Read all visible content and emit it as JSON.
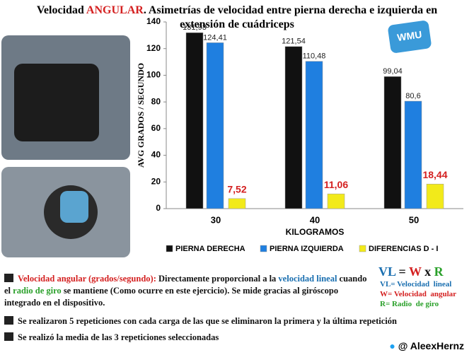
{
  "header": {
    "title_start": "Velocidad ",
    "title_highlight": "ANGULAR",
    "title_rest": ". Asimetrías de velocidad entre pierna derecha e izquierda en",
    "title_line2": "extensión de cuádriceps",
    "logo": "WMU"
  },
  "chart_data": {
    "type": "bar",
    "categories": [
      "30",
      "40",
      "50"
    ],
    "x_label": "KILOGRAMOS",
    "y_label": "AVG GRADOS / SEGUNDO",
    "ylim": [
      0,
      140
    ],
    "yticks": [
      0,
      20,
      40,
      60,
      80,
      100,
      120,
      140
    ],
    "series": [
      {
        "name": "PIERNA DERECHA",
        "color": "#111111",
        "values": [
          131.93,
          121.54,
          99.04
        ],
        "value_labels": [
          "131,93",
          "121,54",
          "99,04"
        ]
      },
      {
        "name": "PIERNA IZQUIERDA",
        "color": "#1f7fe0",
        "values": [
          124.41,
          110.48,
          80.6
        ],
        "value_labels": [
          "124,41",
          "110,48",
          "80,6"
        ]
      },
      {
        "name": "DIFERENCIAS D - I",
        "color": "#f2ea1a",
        "values": [
          7.52,
          11.06,
          18.44
        ],
        "value_labels": [
          "7,52",
          "11,06",
          "18,44"
        ]
      }
    ]
  },
  "notes": [
    [
      {
        "text": "Velocidad angular (grados/segundo):",
        "color": "#d42020"
      },
      {
        "text": " Directamente proporcional a la ",
        "color": "#111111"
      },
      {
        "text": "velocidad lineal",
        "color": "#1a6fb0"
      },
      {
        "text": " cuando el ",
        "color": "#111111"
      },
      {
        "text": "radio de giro",
        "color": "#2aa02a"
      },
      {
        "text": " se mantiene (Como ocurre en este ejercicio). Se mide gracias al giróscopo integrado en el dispositivo.",
        "color": "#111111"
      }
    ],
    [
      {
        "text": "Se realizaron 5 repeticiones con cada carga de las que se eliminaron la primera y la última repetición",
        "color": "#111111"
      }
    ],
    [
      {
        "text": "Se realizó la media de las 3 repeticiones seleccionadas",
        "color": "#111111"
      }
    ]
  ],
  "formula": {
    "parts": [
      {
        "text": "VL",
        "color": "#1a6fb0"
      },
      {
        "text": " = ",
        "color": "#111111"
      },
      {
        "text": "W",
        "color": "#d42020"
      },
      {
        "text": " x ",
        "color": "#111111"
      },
      {
        "text": "R",
        "color": "#2aa02a"
      }
    ],
    "legend": [
      {
        "text": "VL= Velocidad  lineal",
        "color": "#1a6fb0"
      },
      {
        "text": "W= Velocidad  angular",
        "color": "#d42020"
      },
      {
        "text": "R= Radio  de giro",
        "color": "#2aa02a"
      }
    ]
  },
  "footer": "@ AleexHernz"
}
